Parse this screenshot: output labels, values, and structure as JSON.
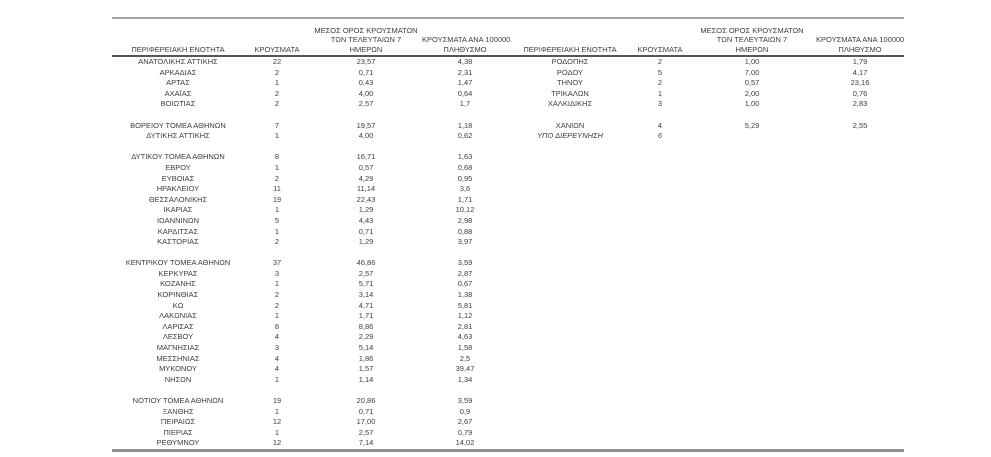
{
  "colors": {
    "background": "#ffffff",
    "text": "#3d3d3d",
    "rule_top": "#a3a3a3",
    "rule_header": "#565656",
    "rule_bottom": "#8f8f8f"
  },
  "headers": {
    "region": "ΠΕΡΙΦΕΡΕΙΑΚΗ ΕΝΟΤΗΤΑ",
    "cases": "ΚΡΟΥΣΜΑΤΑ",
    "avg7_line1": "ΜΕΣΟΣ ΟΡΟΣ ΚΡΟΥΣΜΑΤΩΝ",
    "avg7_line2": "ΤΩΝ ΤΕΛΕΥΤΑΙΩΝ 7",
    "avg7_line3": "ΗΜΕΡΩΝ",
    "per100k_line1": "ΚΡΟΥΣΜΑΤΑ ΑΝΑ 100000",
    "per100k_line2": "ΠΛΗΘΥΣΜΟ"
  },
  "left_table": {
    "rows": [
      {
        "region": "ΑΝΑΤΟΛΙΚΗΣ ΑΤΤΙΚΗΣ",
        "cases": "22",
        "avg7": "23,57",
        "per100k": "4,38"
      },
      {
        "region": "ΑΡΚΑΔΙΑΣ",
        "cases": "2",
        "avg7": "0,71",
        "per100k": "2,31"
      },
      {
        "region": "ΑΡΤΑΣ",
        "cases": "1",
        "avg7": "0,43",
        "per100k": "1,47"
      },
      {
        "region": "ΑΧΑΪΑΣ",
        "cases": "2",
        "avg7": "4,00",
        "per100k": "0,64"
      },
      {
        "region": "ΒΟΙΩΤΙΑΣ",
        "cases": "2",
        "avg7": "2,57",
        "per100k": "1,7"
      },
      {
        "spacer": true
      },
      {
        "region": "ΒΟΡΕΙΟΥ ΤΟΜΕΑ ΑΘΗΝΩΝ",
        "cases": "7",
        "avg7": "19,57",
        "per100k": "1,18"
      },
      {
        "region": "ΔΥΤΙΚΗΣ ΑΤΤΙΚΗΣ",
        "cases": "1",
        "avg7": "4,00",
        "per100k": "0,62"
      },
      {
        "spacer": true
      },
      {
        "region": "ΔΥΤΙΚΟΥ ΤΟΜΕΑ ΑΘΗΝΩΝ",
        "cases": "8",
        "avg7": "16,71",
        "per100k": "1,63"
      },
      {
        "region": "ΕΒΡΟΥ",
        "cases": "1",
        "avg7": "0,57",
        "per100k": "0,68"
      },
      {
        "region": "ΕΥΒΟΙΑΣ",
        "cases": "2",
        "avg7": "4,29",
        "per100k": "0,95"
      },
      {
        "region": "ΗΡΑΚΛΕΙΟΥ",
        "cases": "11",
        "avg7": "11,14",
        "per100k": "3,6"
      },
      {
        "region": "ΘΕΣΣΑΛΟΝΙΚΗΣ",
        "cases": "19",
        "avg7": "22,43",
        "per100k": "1,71"
      },
      {
        "region": "ΙΚΑΡΙΑΣ",
        "cases": "1",
        "avg7": "1,29",
        "per100k": "10,12"
      },
      {
        "region": "ΙΩΑΝΝΙΝΩΝ",
        "cases": "5",
        "avg7": "4,43",
        "per100k": "2,98"
      },
      {
        "region": "ΚΑΡΔΙΤΣΑΣ",
        "cases": "1",
        "avg7": "0,71",
        "per100k": "0,88"
      },
      {
        "region": "ΚΑΣΤΟΡΙΑΣ",
        "cases": "2",
        "avg7": "1,29",
        "per100k": "3,97"
      },
      {
        "spacer": true
      },
      {
        "region": "ΚΕΝΤΡΙΚΟΥ ΤΟΜΕΑ ΑΘΗΝΩΝ",
        "cases": "37",
        "avg7": "46,86",
        "per100k": "3,59"
      },
      {
        "region": "ΚΕΡΚΥΡΑΣ",
        "cases": "3",
        "avg7": "2,57",
        "per100k": "2,87"
      },
      {
        "region": "ΚΟΖΑΝΗΣ",
        "cases": "1",
        "avg7": "5,71",
        "per100k": "0,67"
      },
      {
        "region": "ΚΟΡΙΝΘΙΑΣ",
        "cases": "2",
        "avg7": "3,14",
        "per100k": "1,38"
      },
      {
        "region": "ΚΩ",
        "cases": "2",
        "avg7": "4,71",
        "per100k": "5,81"
      },
      {
        "region": "ΛΑΚΩΝΙΑΣ",
        "cases": "1",
        "avg7": "1,71",
        "per100k": "1,12"
      },
      {
        "region": "ΛΑΡΙΣΑΣ",
        "cases": "8",
        "avg7": "8,86",
        "per100k": "2,81"
      },
      {
        "region": "ΛΕΣΒΟΥ",
        "cases": "4",
        "avg7": "2,29",
        "per100k": "4,63"
      },
      {
        "region": "ΜΑΓΝΗΣΙΑΣ",
        "cases": "3",
        "avg7": "5,14",
        "per100k": "1,58"
      },
      {
        "region": "ΜΕΣΣΗΝΙΑΣ",
        "cases": "4",
        "avg7": "1,86",
        "per100k": "2,5"
      },
      {
        "region": "ΜΥΚΟΝΟΥ",
        "cases": "4",
        "avg7": "1,57",
        "per100k": "39,47"
      },
      {
        "region": "ΝΗΣΩΝ",
        "cases": "1",
        "avg7": "1,14",
        "per100k": "1,34"
      },
      {
        "spacer": true
      },
      {
        "region": "ΝΟΤΙΟΥ ΤΟΜΕΑ ΑΘΗΝΩΝ",
        "cases": "19",
        "avg7": "20,86",
        "per100k": "3,59"
      },
      {
        "region": "ΞΑΝΘΗΣ",
        "cases": "1",
        "avg7": "0,71",
        "per100k": "0,9"
      },
      {
        "region": "ΠΕΙΡΑΙΩΣ",
        "cases": "12",
        "avg7": "17,00",
        "per100k": "2,67"
      },
      {
        "region": "ΠΙΕΡΙΑΣ",
        "cases": "1",
        "avg7": "2,57",
        "per100k": "0,79"
      },
      {
        "region": "ΡΕΘΥΜΝΟΥ",
        "cases": "12",
        "avg7": "7,14",
        "per100k": "14,02"
      }
    ]
  },
  "right_table": {
    "rows": [
      {
        "region": "ΡΟΔΟΠΗΣ",
        "cases": "2",
        "avg7": "1,00",
        "per100k": "1,79"
      },
      {
        "region": "ΡΟΔΟΥ",
        "cases": "5",
        "avg7": "7,00",
        "per100k": "4,17"
      },
      {
        "region": "ΤΗΝΟΥ",
        "cases": "2",
        "avg7": "0,57",
        "per100k": "23,16"
      },
      {
        "region": "ΤΡΙΚΑΛΩΝ",
        "cases": "1",
        "avg7": "2,00",
        "per100k": "0,76"
      },
      {
        "region": "ΧΑΛΚΙΔΙΚΗΣ",
        "cases": "3",
        "avg7": "1,00",
        "per100k": "2,83"
      },
      {
        "spacer": true
      },
      {
        "region": "ΧΑΝΙΩΝ",
        "cases": "4",
        "avg7": "5,29",
        "per100k": "2,55"
      },
      {
        "region": "ΥΠΟ ΔΙΕΡΕΥΝΗΣΗ",
        "cases": "6",
        "avg7": "",
        "per100k": "",
        "italic": true
      }
    ]
  }
}
